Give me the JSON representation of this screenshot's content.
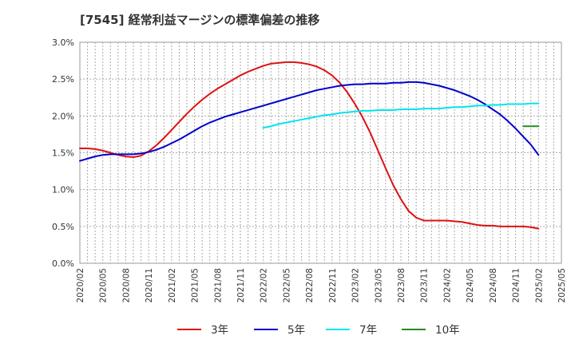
{
  "chart_data": {
    "type": "line",
    "title": "[7545]  経常利益マージンの標準偏差の推移",
    "xlabel": "",
    "ylabel": "",
    "y_tick_labels": [
      "0.0%",
      "0.5%",
      "1.0%",
      "1.5%",
      "2.0%",
      "2.5%",
      "3.0%"
    ],
    "ylim": [
      0,
      3.0
    ],
    "grid": true,
    "legend_position": "bottom",
    "x_tick_labels": [
      "2020/02",
      "2020/05",
      "2020/08",
      "2020/11",
      "2021/02",
      "2021/05",
      "2021/08",
      "2021/11",
      "2022/02",
      "2022/05",
      "2022/08",
      "2022/11",
      "2023/02",
      "2023/05",
      "2023/08",
      "2023/11",
      "2024/02",
      "2024/05",
      "2024/08",
      "2024/11",
      "2025/02",
      "2025/05"
    ],
    "x_months": [
      "2020/02",
      "2020/03",
      "2020/04",
      "2020/05",
      "2020/06",
      "2020/07",
      "2020/08",
      "2020/09",
      "2020/10",
      "2020/11",
      "2020/12",
      "2021/01",
      "2021/02",
      "2021/03",
      "2021/04",
      "2021/05",
      "2021/06",
      "2021/07",
      "2021/08",
      "2021/09",
      "2021/10",
      "2021/11",
      "2021/12",
      "2022/01",
      "2022/02",
      "2022/03",
      "2022/04",
      "2022/05",
      "2022/06",
      "2022/07",
      "2022/08",
      "2022/09",
      "2022/10",
      "2022/11",
      "2022/12",
      "2023/01",
      "2023/02",
      "2023/03",
      "2023/04",
      "2023/05",
      "2023/06",
      "2023/07",
      "2023/08",
      "2023/09",
      "2023/10",
      "2023/11",
      "2023/12",
      "2024/01",
      "2024/02",
      "2024/03",
      "2024/04",
      "2024/05",
      "2024/06",
      "2024/07",
      "2024/08",
      "2024/09",
      "2024/10",
      "2024/11",
      "2024/12",
      "2025/01",
      "2025/02",
      "2025/03",
      "2025/04",
      "2025/05"
    ],
    "series": [
      {
        "name": "3年",
        "color": "#dd1111",
        "start": "2020/02",
        "values": [
          1.56,
          1.56,
          1.55,
          1.53,
          1.5,
          1.47,
          1.45,
          1.44,
          1.46,
          1.52,
          1.6,
          1.7,
          1.81,
          1.92,
          2.03,
          2.13,
          2.22,
          2.3,
          2.37,
          2.43,
          2.49,
          2.55,
          2.6,
          2.64,
          2.68,
          2.71,
          2.72,
          2.73,
          2.73,
          2.72,
          2.7,
          2.67,
          2.62,
          2.55,
          2.45,
          2.32,
          2.16,
          1.98,
          1.77,
          1.53,
          1.29,
          1.06,
          0.87,
          0.71,
          0.62,
          0.58,
          0.58,
          0.58,
          0.58,
          0.57,
          0.56,
          0.54,
          0.52,
          0.51,
          0.51,
          0.5,
          0.5,
          0.5,
          0.5,
          0.49,
          0.47
        ]
      },
      {
        "name": "5年",
        "color": "#0000cc",
        "start": "2020/02",
        "values": [
          1.39,
          1.42,
          1.45,
          1.47,
          1.48,
          1.48,
          1.48,
          1.48,
          1.49,
          1.51,
          1.54,
          1.58,
          1.63,
          1.68,
          1.74,
          1.8,
          1.86,
          1.91,
          1.95,
          1.99,
          2.02,
          2.05,
          2.08,
          2.11,
          2.14,
          2.17,
          2.2,
          2.23,
          2.26,
          2.29,
          2.32,
          2.35,
          2.37,
          2.39,
          2.41,
          2.42,
          2.43,
          2.43,
          2.44,
          2.44,
          2.44,
          2.45,
          2.45,
          2.46,
          2.46,
          2.45,
          2.43,
          2.41,
          2.38,
          2.35,
          2.31,
          2.27,
          2.22,
          2.16,
          2.09,
          2.02,
          1.93,
          1.83,
          1.72,
          1.61,
          1.47
        ]
      },
      {
        "name": "7年",
        "color": "#00e5ee",
        "start": "2022/02",
        "values": [
          1.84,
          1.86,
          1.89,
          1.91,
          1.93,
          1.95,
          1.97,
          1.99,
          2.01,
          2.02,
          2.04,
          2.05,
          2.06,
          2.07,
          2.07,
          2.08,
          2.08,
          2.08,
          2.09,
          2.09,
          2.09,
          2.1,
          2.1,
          2.1,
          2.11,
          2.12,
          2.12,
          2.13,
          2.14,
          2.14,
          2.15,
          2.15,
          2.16,
          2.16,
          2.16,
          2.17,
          2.17
        ]
      },
      {
        "name": "10年",
        "color": "#228b22",
        "start": "2024/12",
        "values": [
          1.86,
          1.86,
          1.86
        ]
      }
    ]
  }
}
